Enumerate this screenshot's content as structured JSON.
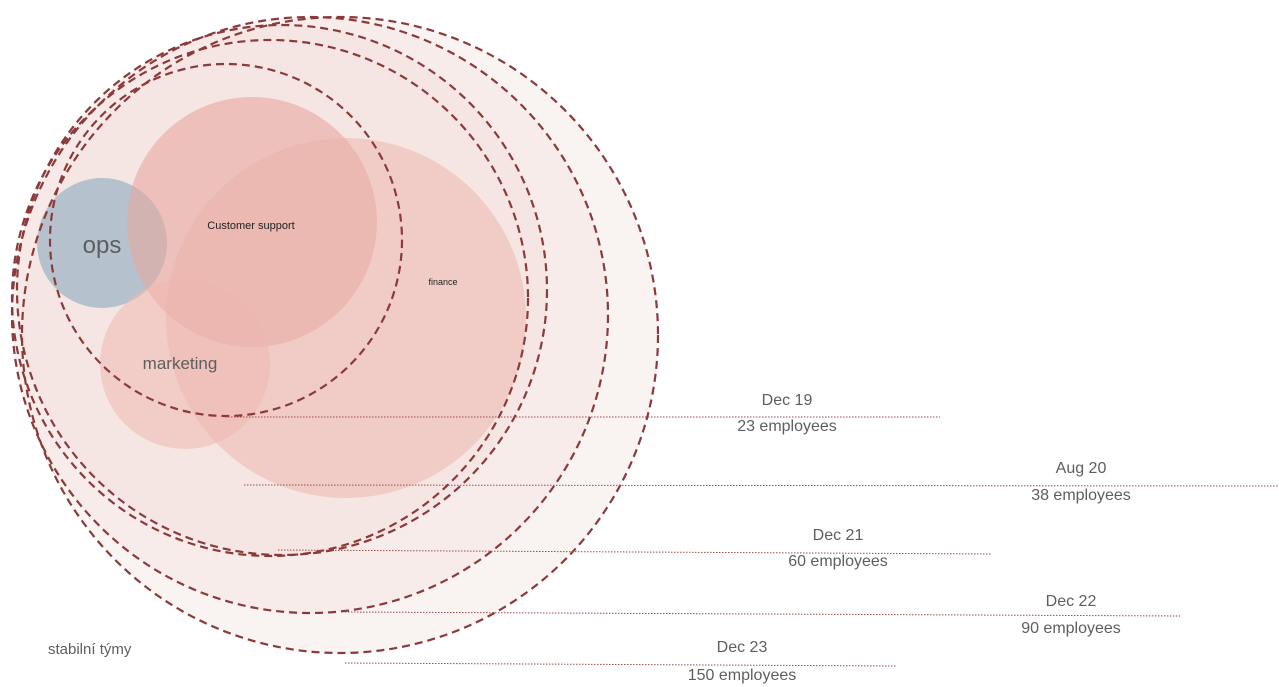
{
  "teams": [
    {
      "label": "ops",
      "color": "#9fb6c6"
    },
    {
      "label": "Customer support",
      "color": "#e8a7a0"
    },
    {
      "label": "finance",
      "color": "#ecb1aa"
    },
    {
      "label": "marketing",
      "color": "#eeb6b0"
    }
  ],
  "milestones": [
    {
      "date": "Dec 19",
      "count": "23 employees"
    },
    {
      "date": "Aug 20",
      "count": "38 employees"
    },
    {
      "date": "Dec 21",
      "count": "60 employees"
    },
    {
      "date": "Dec 22",
      "count": "90 employees"
    },
    {
      "date": "Dec 23",
      "count": "150 employees"
    }
  ],
  "footnote": "stabilní týmy",
  "colors": {
    "dashed_ring": "#8b3a3a",
    "leader_line": "#9c4b4b",
    "outer_fill": "#f7ebe8",
    "text": "#5e5e5e"
  }
}
